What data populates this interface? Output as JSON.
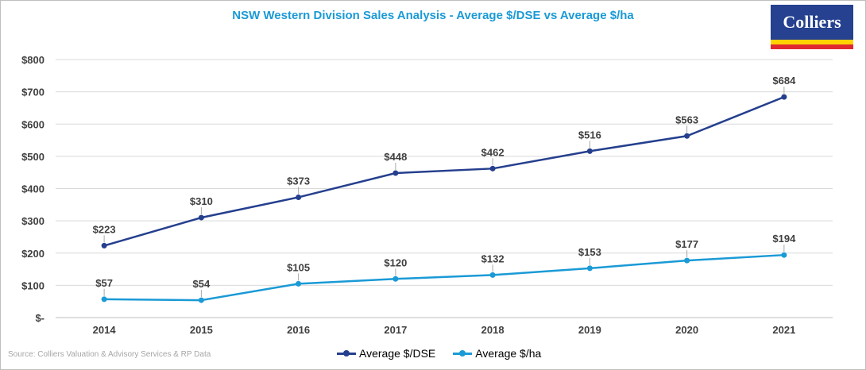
{
  "title": "NSW Western Division Sales Analysis  - Average $/DSE vs Average $/ha",
  "logo": {
    "text": "Colliers"
  },
  "source": "Source: Colliers Valuation & Advisory Services & RP Data",
  "chart_data": {
    "type": "line",
    "title": "NSW Western Division Sales Analysis  - Average $/DSE vs Average $/ha",
    "categories": [
      "2014",
      "2015",
      "2016",
      "2017",
      "2018",
      "2019",
      "2020",
      "2021"
    ],
    "ylim": [
      0,
      800
    ],
    "yticks": [
      0,
      100,
      200,
      300,
      400,
      500,
      600,
      700,
      800
    ],
    "ytick_labels": [
      "$-",
      "$100",
      "$200",
      "$300",
      "$400",
      "$500",
      "$600",
      "$700",
      "$800"
    ],
    "grid": true,
    "legend_position": "bottom",
    "series": [
      {
        "name": "Average $/DSE",
        "color": "#253f8e",
        "values": [
          223,
          310,
          373,
          448,
          462,
          516,
          563,
          684
        ],
        "labels": [
          "$223",
          "$310",
          "$373",
          "$448",
          "$462",
          "$516",
          "$563",
          "$684"
        ]
      },
      {
        "name": "Average $/ha",
        "color": "#1a9ad6",
        "values": [
          57,
          54,
          105,
          120,
          132,
          153,
          177,
          194
        ],
        "labels": [
          "$57",
          "$54",
          "$105",
          "$120",
          "$132",
          "$153",
          "$177",
          "$194"
        ]
      }
    ]
  }
}
